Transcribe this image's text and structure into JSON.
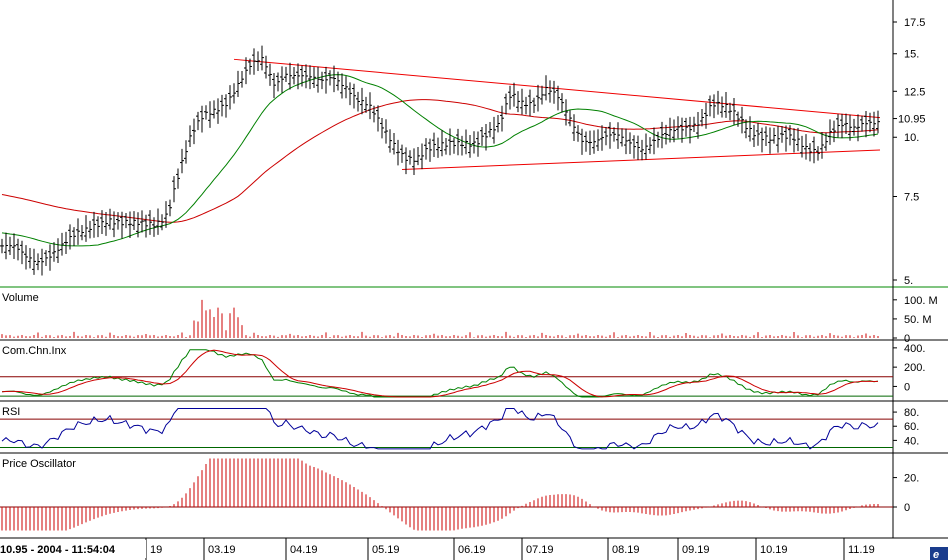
{
  "status_text": "10.95 - 2004 - 11:54:04",
  "chart_data": [
    {
      "type": "ohlc",
      "panel": "price",
      "title": "",
      "y_scale": "log",
      "y_ticks": [
        "17.5",
        "15.",
        "12.5",
        "10.95",
        "10.",
        "7.5",
        "5."
      ],
      "last_value_label": "10.95",
      "colors": {
        "bars": "#000000",
        "ma_long": "#cc0000",
        "ma_mid": "#008000",
        "trendline": "#ee0000"
      },
      "close_path": [
        [
          "19",
          5.9
        ],
        [
          "19",
          5.8
        ],
        [
          "19",
          5.55
        ],
        [
          "19",
          5.5
        ],
        [
          "19",
          5.7
        ],
        [
          "19",
          5.9
        ],
        [
          "19",
          6.1
        ],
        [
          "19",
          6.3
        ],
        [
          "19",
          6.6
        ],
        [
          "19",
          6.8
        ],
        [
          "19",
          6.6
        ],
        [
          "19",
          6.5
        ],
        [
          "19",
          6.5
        ],
        [
          "19",
          6.6
        ],
        [
          "19",
          7.0
        ],
        [
          "19",
          8.5
        ],
        [
          "19",
          10.0
        ],
        [
          "19",
          11.0
        ],
        [
          "03.19",
          11.5
        ],
        [
          "03.19",
          12.0
        ],
        [
          "03.19",
          13.0
        ],
        [
          "03.19",
          14.0
        ],
        [
          "03.19",
          14.5
        ],
        [
          "03.19",
          13.0
        ],
        [
          "04.19",
          13.8
        ],
        [
          "04.19",
          13.5
        ],
        [
          "04.19",
          13.2
        ],
        [
          "04.19",
          13.0
        ],
        [
          "04.19",
          13.5
        ],
        [
          "04.19",
          13.0
        ],
        [
          "04.19",
          12.0
        ],
        [
          "04.19",
          11.5
        ],
        [
          "05.19",
          10.5
        ],
        [
          "05.19",
          9.8
        ],
        [
          "05.19",
          9.2
        ],
        [
          "05.19",
          9.0
        ],
        [
          "05.19",
          9.3
        ],
        [
          "05.19",
          9.5
        ],
        [
          "05.19",
          9.8
        ],
        [
          "06.19",
          9.9
        ],
        [
          "06.19",
          9.7
        ],
        [
          "06.19",
          10.0
        ],
        [
          "06.19",
          10.5
        ],
        [
          "06.19",
          12.5
        ],
        [
          "06.19",
          12.0
        ],
        [
          "06.19",
          11.8
        ],
        [
          "06.19",
          12.5
        ],
        [
          "07.19",
          12.0
        ],
        [
          "07.19",
          11.0
        ],
        [
          "07.19",
          10.0
        ],
        [
          "07.19",
          9.8
        ],
        [
          "07.19",
          9.9
        ],
        [
          "07.19",
          10.0
        ],
        [
          "08.19",
          9.8
        ],
        [
          "08.19",
          9.6
        ],
        [
          "08.19",
          9.8
        ],
        [
          "08.19",
          10.0
        ],
        [
          "08.19",
          10.3
        ],
        [
          "08.19",
          10.5
        ],
        [
          "09.19",
          11.0
        ],
        [
          "09.19",
          11.8
        ],
        [
          "09.19",
          11.5
        ],
        [
          "09.19",
          11.0
        ],
        [
          "09.19",
          10.5
        ],
        [
          "10.19",
          10.2
        ],
        [
          "10.19",
          10.0
        ],
        [
          "10.19",
          9.9
        ],
        [
          "10.19",
          9.8
        ],
        [
          "10.19",
          9.5
        ],
        [
          "10.19",
          9.5
        ],
        [
          "11.19",
          10.3
        ],
        [
          "11.19",
          10.5
        ],
        [
          "11.19",
          10.3
        ],
        [
          "11.19",
          10.8
        ],
        [
          "11.19",
          10.95
        ]
      ]
    },
    {
      "type": "bar",
      "panel": "volume",
      "title": "Volume",
      "y_ticks": [
        "100. M",
        "50. M",
        "0"
      ],
      "colors": {
        "bars": "#cc0000"
      },
      "spikes": [
        [
          "03.19",
          100
        ],
        [
          "03.19",
          70
        ],
        [
          "03.19",
          60
        ],
        [
          "04.19",
          35
        ],
        [
          "04.19",
          30
        ],
        [
          "04.19",
          25
        ]
      ]
    },
    {
      "type": "line",
      "panel": "cci",
      "title": "Com.Chn.Inx",
      "y_ticks": [
        "400.",
        "200.",
        "0"
      ],
      "colors": {
        "main": "#008000",
        "signal": "#cc0000",
        "bands": "#880000",
        "bands_low": "#006600"
      }
    },
    {
      "type": "line",
      "panel": "rsi",
      "title": "RSI",
      "y_ticks": [
        "80.",
        "60.",
        "40."
      ],
      "colors": {
        "main": "#000099",
        "band_high": "#880000",
        "band_low": "#006600"
      }
    },
    {
      "type": "bar",
      "panel": "oscillator",
      "title": "Price Oscillator",
      "y_ticks": [
        "20.",
        "0"
      ],
      "colors": {
        "bars": "#cc0000",
        "zero": "#880000"
      }
    }
  ],
  "x_axis": {
    "labels": [
      "19",
      "03.19",
      "04.19",
      "05.19",
      "06.19",
      "07.19",
      "08.19",
      "09.19",
      "10.19",
      "11.19"
    ]
  }
}
